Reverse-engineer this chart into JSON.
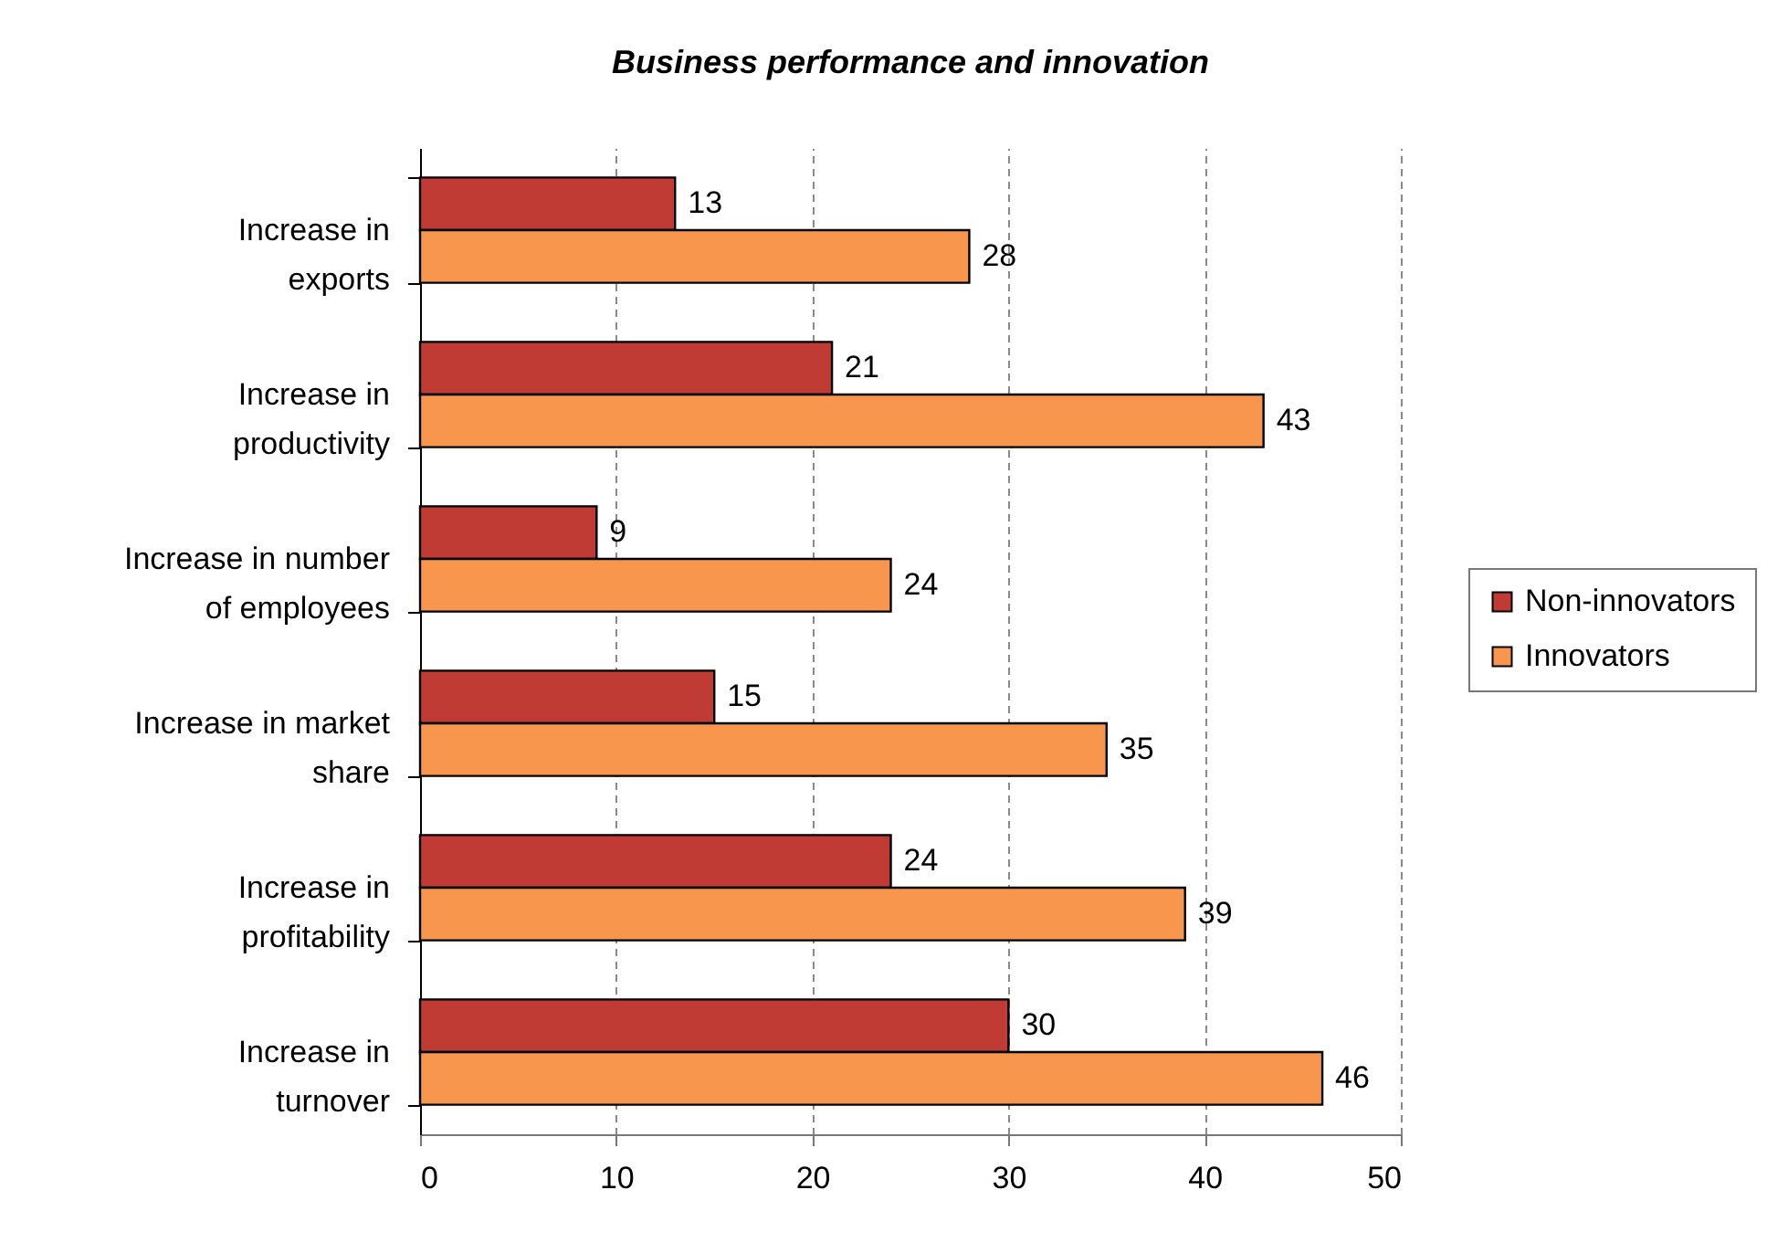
{
  "chart_data": {
    "type": "bar",
    "orientation": "horizontal",
    "title": "Business performance and innovation",
    "categories": [
      "Increase in exports",
      "Increase in productivity",
      "Increase in number of employees",
      "Increase in market share",
      "Increase in profitability",
      "Increase in turnover"
    ],
    "series": [
      {
        "name": "Non-innovators",
        "color": "#bf3b33",
        "values": [
          13,
          21,
          9,
          15,
          24,
          30
        ]
      },
      {
        "name": "Innovators",
        "color": "#f7964c",
        "values": [
          28,
          43,
          24,
          35,
          39,
          46
        ]
      }
    ],
    "xlim": [
      0,
      50
    ],
    "xticks": [
      0,
      10,
      20,
      30,
      40,
      50
    ],
    "grid": "x",
    "legend": "right",
    "data_labels": true
  }
}
